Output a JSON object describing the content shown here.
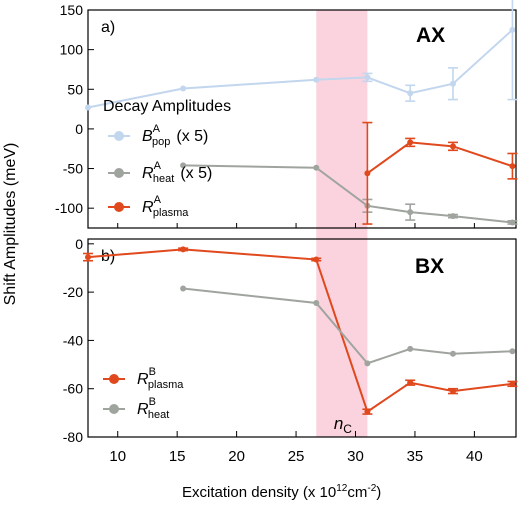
{
  "y_axis_label": "Shift Amplitudes (meV)",
  "x_axis_label": {
    "text": "Excitation density (x 10",
    "sup1": "12",
    "mid": "cm",
    "sup2": "-2",
    "close": ")"
  },
  "x_ticks": [
    "10",
    "15",
    "20",
    "25",
    "30",
    "35",
    "40"
  ],
  "colors": {
    "orange": "#e0481d",
    "gray": "#a0a49f",
    "lightblue": "#c2d6ee",
    "band": "#fbd3de"
  },
  "band_label": {
    "main": "n",
    "sub": "C"
  },
  "chart_data": [
    {
      "type": "line",
      "panel_label": "a)",
      "corner_label": "AX",
      "legend_title": "Decay Amplitudes",
      "xlim": [
        7.5,
        43.5
      ],
      "ylim": [
        -125,
        150
      ],
      "y_ticks": [
        "150",
        "100",
        "50",
        "0",
        "-50",
        "-100"
      ],
      "band_x": [
        26.7,
        31.0
      ],
      "series": [
        {
          "name": "B",
          "sub": "pop",
          "sup": "A",
          "suffix": "(x 5)",
          "color": "lightblue",
          "x": [
            7.5,
            15.5,
            26.7,
            31.0,
            34.6,
            38.2,
            43.2
          ],
          "y": [
            27,
            51,
            62,
            65,
            45,
            57,
            125
          ],
          "err": [
            0,
            0,
            0,
            5,
            10,
            20,
            88
          ]
        },
        {
          "name": "R",
          "sub": "heat",
          "sup": "A",
          "suffix": "(x 5)",
          "color": "gray",
          "x": [
            15.5,
            26.7,
            31.0,
            34.6,
            38.2,
            43.2
          ],
          "y": [
            -46,
            -49,
            -97,
            -105,
            -110,
            -118
          ],
          "err": [
            0,
            0,
            8,
            10,
            2,
            2
          ]
        },
        {
          "name": "R",
          "sub": "plasma",
          "sup": "A",
          "suffix": "",
          "color": "orange",
          "x": [
            31.0,
            34.6,
            38.2,
            43.2
          ],
          "y": [
            -56,
            -17,
            -22,
            -47
          ],
          "err": [
            64,
            5,
            5,
            16
          ]
        }
      ]
    },
    {
      "type": "line",
      "panel_label": "b)",
      "corner_label": "BX",
      "legend_title": "",
      "xlim": [
        7.5,
        43.5
      ],
      "ylim": [
        -80,
        2
      ],
      "y_ticks": [
        "0",
        "-20",
        "-40",
        "-60",
        "-80"
      ],
      "band_x": [
        26.7,
        31.0
      ],
      "series": [
        {
          "name": "R",
          "sub": "plasma",
          "sup": "B",
          "suffix": "",
          "color": "orange",
          "x": [
            7.5,
            15.5,
            26.7,
            31.0,
            34.6,
            38.2,
            43.2
          ],
          "y": [
            -5.5,
            -2.3,
            -6.5,
            -69.5,
            -57.5,
            -61,
            -58
          ],
          "err": [
            1.5,
            0.5,
            0.5,
            1,
            1,
            1,
            1
          ]
        },
        {
          "name": "R",
          "sub": "heat",
          "sup": "B",
          "suffix": "",
          "color": "gray",
          "x": [
            15.5,
            26.7,
            31.0,
            34.6,
            38.2,
            43.2
          ],
          "y": [
            -18.5,
            -24.5,
            -49.5,
            -43.5,
            -45.5,
            -44.5
          ],
          "err": [
            0,
            0,
            0,
            0,
            0,
            0
          ]
        }
      ]
    }
  ]
}
